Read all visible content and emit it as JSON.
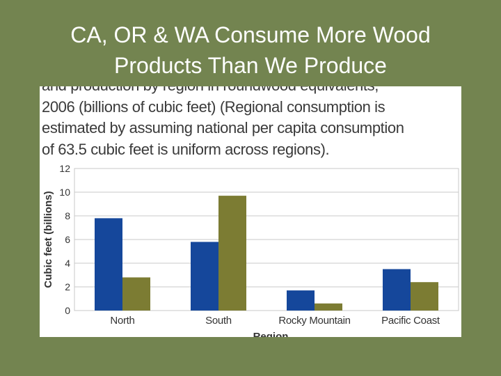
{
  "slide": {
    "title_line1": "CA, OR & WA Consume More Wood",
    "title_line2": "Products Than We Produce"
  },
  "caption": {
    "line0": "and production by region in roundwood equivalents,",
    "line1": "2006 (billions of cubic feet) (Regional consumption is",
    "line2": "estimated by assuming national per capita consumption",
    "line3": "of 63.5 cubic feet is uniform across regions)."
  },
  "colors": {
    "series1": "#15479b",
    "series2": "#7c7c33",
    "grid": "#c8c8c8",
    "text": "#333333"
  },
  "chart_data": {
    "type": "bar",
    "categories": [
      "North",
      "South",
      "Rocky Mountain",
      "Pacific Coast"
    ],
    "series": [
      {
        "values": [
          7.8,
          5.8,
          1.7,
          3.5
        ]
      },
      {
        "values": [
          2.8,
          9.7,
          0.6,
          2.4
        ]
      }
    ],
    "yticks": [
      "0",
      "2",
      "4",
      "6",
      "8",
      "10",
      "12"
    ],
    "ylim": [
      0,
      12
    ],
    "ylabel": "Cubic feet (billions)",
    "xlabel": "Region",
    "grid": true
  }
}
